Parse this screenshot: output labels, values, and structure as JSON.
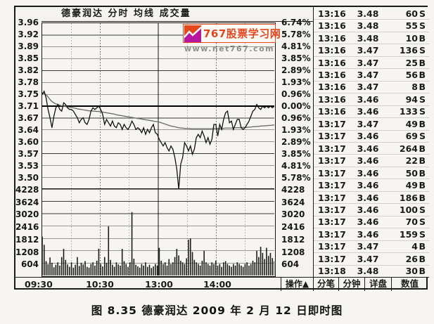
{
  "window": {
    "title": "德豪润达 分时 均线 成交量",
    "caption": "图 8.35  德豪润达 2009 年 2 月 12 日即时图"
  },
  "logo": {
    "text": "767股票学习网",
    "url": "www.net767.com",
    "accent_color": "#e2471d",
    "magenta_color": "#b5179e"
  },
  "toolbar": {
    "action_label": "操作",
    "action_arrow": "▲"
  },
  "tabs": [
    {
      "key": "tick",
      "label": "分笔"
    },
    {
      "key": "minute",
      "label": "分钟"
    },
    {
      "key": "detail",
      "label": "详盘"
    },
    {
      "key": "value",
      "label": "数值"
    }
  ],
  "trade_panel": {
    "columns": [
      "time",
      "price",
      "volume",
      "side"
    ],
    "rows": [
      [
        "13:16",
        "3.48",
        "60",
        "S"
      ],
      [
        "13:16",
        "3.48",
        "55",
        "S"
      ],
      [
        "13:16",
        "3.48",
        "10",
        "B"
      ],
      [
        "13:16",
        "3.47",
        "136",
        "S"
      ],
      [
        "13:16",
        "3.47",
        "25",
        "B"
      ],
      [
        "13:16",
        "3.47",
        "56",
        "B"
      ],
      [
        "13:16",
        "3.47",
        "8",
        "B"
      ],
      [
        "13:16",
        "3.46",
        "94",
        "S"
      ],
      [
        "13:16",
        "3.46",
        "133",
        "S"
      ],
      [
        "13:17",
        "3.47",
        "49",
        "B"
      ],
      [
        "13:17",
        "3.46",
        "69",
        "S"
      ],
      [
        "13:17",
        "3.46",
        "264",
        "B"
      ],
      [
        "13:17",
        "3.46",
        "22",
        "B"
      ],
      [
        "13:17",
        "3.46",
        "50",
        "B"
      ],
      [
        "13:17",
        "3.46",
        "49",
        "B"
      ],
      [
        "13:17",
        "3.46",
        "186",
        "B"
      ],
      [
        "13:17",
        "3.46",
        "100",
        "S"
      ],
      [
        "13:17",
        "3.46",
        "70",
        "S"
      ],
      [
        "13:17",
        "3.46",
        "159",
        "S"
      ],
      [
        "13:17",
        "3.47",
        "4",
        "B"
      ],
      [
        "13:17",
        "3.47",
        "26",
        "B"
      ],
      [
        "13:18",
        "3.48",
        "30",
        "B"
      ]
    ]
  },
  "chart_data": {
    "type": "line",
    "title": "德豪润达 分时 均线 成交量",
    "prev_close": 3.71,
    "price_axis": [
      "3.96",
      "3.92",
      "3.89",
      "3.85",
      "3.82",
      "3.78",
      "3.75",
      "3.71",
      "3.67",
      "3.64",
      "3.60",
      "3.57",
      "3.53",
      "3.50"
    ],
    "percent_axis": [
      "6.74%",
      "5.78%",
      "4.81%",
      "3.85%",
      "2.89%",
      "1.93%",
      "0.96%",
      "0.00%",
      "0.96%",
      "1.93%",
      "2.89%",
      "3.85%",
      "4.81%",
      "5.78%"
    ],
    "volume_axis": [
      "4228",
      "3624",
      "3020",
      "2416",
      "1812",
      "1208",
      "604"
    ],
    "time_ticks": [
      "09:30",
      "10:30",
      "13:00",
      "14:00"
    ],
    "price_range": [
      3.46,
      3.96
    ],
    "volume_range": [
      0,
      4228
    ],
    "grid": true,
    "series": [
      {
        "name": "price",
        "values": [
          3.745,
          3.755,
          3.735,
          3.7,
          3.675,
          3.645,
          3.68,
          3.705,
          3.715,
          3.7,
          3.695,
          3.72,
          3.715,
          3.705,
          3.7,
          3.7,
          3.695,
          3.685,
          3.675,
          3.66,
          3.67,
          3.675,
          3.66,
          3.655,
          3.67,
          3.695,
          3.705,
          3.7,
          3.705,
          3.71,
          3.7,
          3.685,
          3.655,
          3.67,
          3.66,
          3.65,
          3.665,
          3.65,
          3.645,
          3.66,
          3.655,
          3.64,
          3.655,
          3.645,
          3.64,
          3.65,
          3.665,
          3.655,
          3.64,
          3.645,
          3.64,
          3.63,
          3.645,
          3.625,
          3.64,
          3.63,
          3.645,
          3.655,
          3.63,
          3.625,
          3.61,
          3.6,
          3.59,
          3.6,
          3.585,
          3.575,
          3.59,
          3.58,
          3.555,
          3.52,
          3.46,
          3.535,
          3.555,
          3.6,
          3.59,
          3.575,
          3.59,
          3.565,
          3.58,
          3.615,
          3.625,
          3.615,
          3.635,
          3.62,
          3.6,
          3.615,
          3.595,
          3.61,
          3.655,
          3.655,
          3.62,
          3.655,
          3.64,
          3.67,
          3.69,
          3.695,
          3.66,
          3.665,
          3.64,
          3.655,
          3.67,
          3.67,
          3.645,
          3.64,
          3.645,
          3.655,
          3.665,
          3.68,
          3.695,
          3.7,
          3.715,
          3.705,
          3.7,
          3.71,
          3.705,
          3.71,
          3.705,
          3.71,
          3.705,
          3.71
        ]
      },
      {
        "name": "average",
        "values": [
          3.75,
          3.748,
          3.744,
          3.738,
          3.73,
          3.724,
          3.72,
          3.717,
          3.715,
          3.713,
          3.711,
          3.71,
          3.709,
          3.708,
          3.707,
          3.706,
          3.705,
          3.704,
          3.702,
          3.701,
          3.7,
          3.699,
          3.698,
          3.697,
          3.696,
          3.696,
          3.695,
          3.695,
          3.694,
          3.694,
          3.693,
          3.692,
          3.691,
          3.69,
          3.689,
          3.688,
          3.687,
          3.686,
          3.684,
          3.683,
          3.682,
          3.681,
          3.68,
          3.679,
          3.678,
          3.677,
          3.676,
          3.675,
          3.674,
          3.673,
          3.672,
          3.671,
          3.67,
          3.669,
          3.668,
          3.667,
          3.666,
          3.665,
          3.664,
          3.663,
          3.662,
          3.66,
          3.658,
          3.656,
          3.654,
          3.652,
          3.65,
          3.649,
          3.648,
          3.646,
          3.645,
          3.644,
          3.644,
          3.643,
          3.643,
          3.643,
          3.642,
          3.642,
          3.642,
          3.642,
          3.642,
          3.642,
          3.642,
          3.642,
          3.642,
          3.642,
          3.642,
          3.642,
          3.643,
          3.643,
          3.643,
          3.643,
          3.643,
          3.643,
          3.644,
          3.644,
          3.644,
          3.644,
          3.644,
          3.645,
          3.645,
          3.645,
          3.645,
          3.646,
          3.646,
          3.646,
          3.647,
          3.647,
          3.648,
          3.648,
          3.649,
          3.649,
          3.65,
          3.65,
          3.651,
          3.651,
          3.652,
          3.652,
          3.653,
          3.653
        ]
      },
      {
        "name": "volume",
        "values": [
          1900,
          1500,
          700,
          550,
          880,
          620,
          400,
          520,
          640,
          480,
          900,
          1300,
          760,
          540,
          420,
          640,
          380,
          520,
          900,
          460,
          620,
          540,
          700,
          420,
          380,
          560,
          640,
          480,
          720,
          1310,
          560,
          440,
          900,
          620,
          2400,
          760,
          520,
          420,
          640,
          540,
          480,
          1300,
          700,
          560,
          420,
          640,
          3100,
          820,
          520,
          440,
          380,
          560,
          480,
          640,
          420,
          520,
          360,
          440,
          560,
          480,
          1350,
          720,
          560,
          640,
          480,
          800,
          560,
          640,
          900,
          1300,
          980,
          720,
          640,
          560,
          840,
          1750,
          1800,
          1150,
          760,
          640,
          560,
          480,
          720,
          1200,
          640,
          560,
          480,
          640,
          560,
          720,
          480,
          560,
          420,
          640,
          700,
          560,
          480,
          420,
          560,
          480,
          640,
          560,
          480,
          420,
          560,
          640,
          480,
          560,
          720,
          640,
          1200,
          900,
          1400,
          1100,
          800,
          1350,
          950,
          1100,
          850,
          700
        ]
      }
    ]
  }
}
